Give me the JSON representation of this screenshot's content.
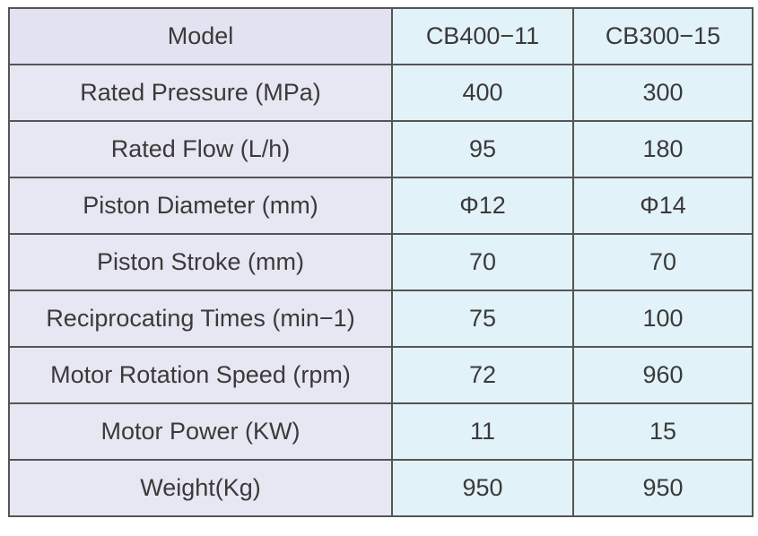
{
  "table": {
    "header": [
      "Model",
      "CB400−11",
      "CB300−15"
    ],
    "rows": [
      [
        "Rated Pressure (MPa)",
        "400",
        "300"
      ],
      [
        "Rated Flow (L/h)",
        "95",
        "180"
      ],
      [
        "Piston Diameter (mm)",
        "Φ12",
        "Φ14"
      ],
      [
        "Piston Stroke (mm)",
        "70",
        "70"
      ],
      [
        "Reciprocating Times (min−1)",
        "75",
        "100"
      ],
      [
        "Motor Rotation Speed (rpm)",
        "72",
        "960"
      ],
      [
        "Motor Power (KW)",
        "11",
        "15"
      ],
      [
        "Weight(Kg)",
        "950",
        "950"
      ]
    ]
  }
}
